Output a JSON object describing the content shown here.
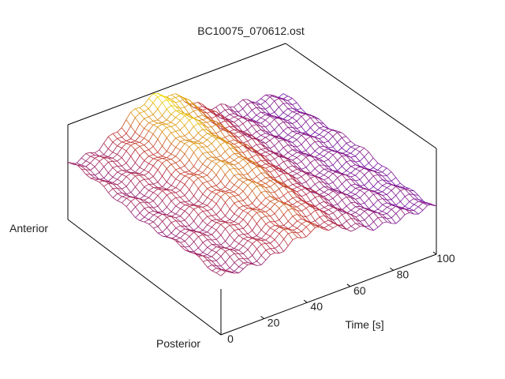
{
  "chart_data": {
    "type": "surface-3d",
    "title": "BC10075_070612.ost",
    "xlabel": "Time [s]",
    "ylabel_low": "Posterior",
    "ylabel_high": "Anterior",
    "x_ticks": [
      "0",
      "20",
      "40",
      "60",
      "80",
      "100"
    ],
    "x_tick_values": [
      0,
      20,
      40,
      60,
      80,
      100
    ],
    "xlim": [
      0,
      100
    ],
    "surface_shape": "ridge rising from near 0 s, peaking around 40 s, falling toward 100 s, with higher values toward the anterior side",
    "colormap": [
      "#6a0dad",
      "#c03030",
      "#f0e000"
    ],
    "grid": false
  }
}
